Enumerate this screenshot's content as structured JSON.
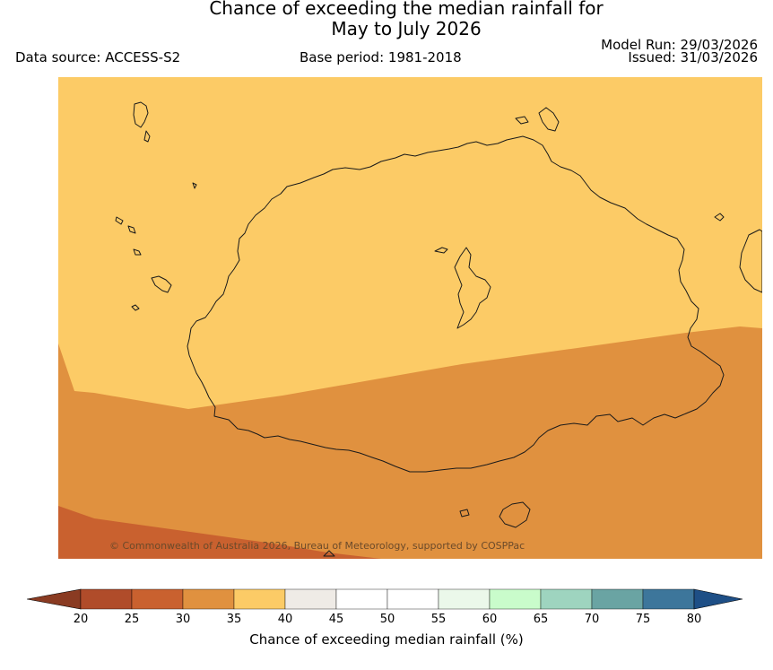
{
  "title_line1": "Chance of exceeding the median rainfall for",
  "title_line2": "May to July 2026",
  "data_source": "Data source: ACCESS-S2",
  "base_period": "Base period: 1981-2018",
  "model_run": "Model Run: 29/03/2026",
  "issued": "Issued: 31/03/2026",
  "copyright": "© Commonwealth of Australia 2026, Bureau of Meteorology, supported by COSPPac",
  "colorbar": {
    "label": "Chance of exceeding median rainfall (%)",
    "ticks": [
      "20",
      "25",
      "30",
      "35",
      "40",
      "45",
      "50",
      "55",
      "60",
      "65",
      "70",
      "75",
      "80"
    ],
    "colors": [
      "#b04c2a",
      "#c9612f",
      "#e0913f",
      "#fccb66",
      "#efebe6",
      "#ffffff",
      "#ffffff",
      "#ebf8ea",
      "#c9fccb",
      "#9ed4bf",
      "#6aa4a3",
      "#3d769b"
    ],
    "under_color": "#8a3b22",
    "over_color": "#1e4f86"
  },
  "map_zones": {
    "above_35": "#fccb66",
    "range_30_35": "#e0913f",
    "range_25_30": "#c9612f"
  }
}
